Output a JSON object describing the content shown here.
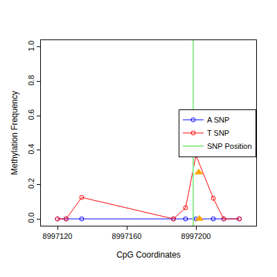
{
  "chart_data": {
    "type": "line",
    "x_label": "CpG Coordinates",
    "y_label": "Methylation Frequency",
    "xlim": [
      8997110.4,
      8997234.8
    ],
    "ylim": [
      -0.04,
      1.04
    ],
    "xticks": [
      8997120,
      8997160,
      8997200
    ],
    "yticks": [
      {
        "value": 0,
        "label": "0.0"
      },
      {
        "value": 0.2,
        "label": "0.2"
      },
      {
        "value": 0.4,
        "label": "0.4"
      },
      {
        "value": 0.6,
        "label": "0.6"
      },
      {
        "value": 0.8,
        "label": "0.8"
      },
      {
        "value": 1,
        "label": "1.0"
      }
    ],
    "grid": false,
    "legend": "right",
    "series": [
      {
        "name": "A SNP",
        "color": "#0000ff",
        "marker": "open_circle",
        "line_style": "solid",
        "x": [
          8997120,
          8997125,
          8997134,
          8997187,
          8997194,
          8997200,
          8997210,
          8997216,
          8997225
        ],
        "values": [
          0,
          0,
          0,
          0,
          0,
          0,
          0,
          0,
          0
        ]
      },
      {
        "name": "T SNP",
        "color": "#ff0000",
        "marker": "open_circle",
        "line_style": "solid",
        "x": [
          8997120,
          8997125,
          8997134,
          8997187,
          8997194,
          8997200,
          8997210,
          8997216,
          8997225
        ],
        "values": [
          0,
          0,
          0.125,
          0,
          0.065,
          0.37,
          0.12,
          0,
          0
        ]
      },
      {
        "name": "SNP Position",
        "color": "#90ee90",
        "type": "vline",
        "line_style": "solid",
        "x": [
          8997198.4
        ]
      },
      {
        "type": "scatter",
        "color": "#ffa500",
        "marker": "triangle",
        "x": [
          8997201.6,
          8997202
        ],
        "values": [
          0.27,
          0
        ]
      }
    ]
  }
}
